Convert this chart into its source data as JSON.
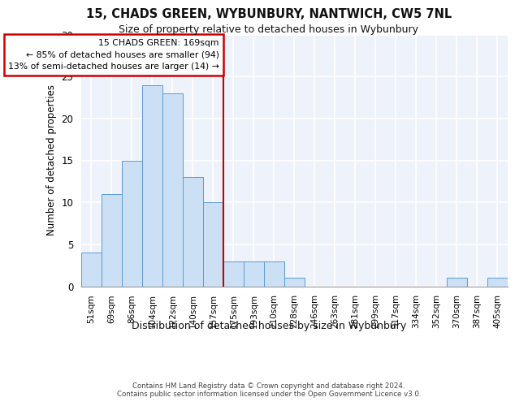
{
  "title_line1": "15, CHADS GREEN, WYBUNBURY, NANTWICH, CW5 7NL",
  "title_line2": "Size of property relative to detached houses in Wybunbury",
  "xlabel": "Distribution of detached houses by size in Wybunbury",
  "ylabel": "Number of detached properties",
  "bar_labels": [
    "51sqm",
    "69sqm",
    "86sqm",
    "104sqm",
    "122sqm",
    "140sqm",
    "157sqm",
    "175sqm",
    "193sqm",
    "210sqm",
    "228sqm",
    "246sqm",
    "263sqm",
    "281sqm",
    "299sqm",
    "317sqm",
    "334sqm",
    "352sqm",
    "370sqm",
    "387sqm",
    "405sqm"
  ],
  "bar_values": [
    4,
    11,
    15,
    24,
    23,
    13,
    10,
    3,
    3,
    3,
    1,
    0,
    0,
    0,
    0,
    0,
    0,
    0,
    1,
    0,
    1
  ],
  "bar_color": "#cce0f5",
  "bar_edge_color": "#5b9bd5",
  "vline_x_index": 6.5,
  "annotation_text": "15 CHADS GREEN: 169sqm\n← 85% of detached houses are smaller (94)\n13% of semi-detached houses are larger (14) →",
  "vline_color": "#cc0000",
  "annotation_box_color": "#ffffff",
  "annotation_box_edge": "#cc0000",
  "ylim": [
    0,
    30
  ],
  "yticks": [
    0,
    5,
    10,
    15,
    20,
    25,
    30
  ],
  "background_color": "#eef2fa",
  "grid_color": "#ffffff",
  "footer_line1": "Contains HM Land Registry data © Crown copyright and database right 2024.",
  "footer_line2": "Contains public sector information licensed under the Open Government Licence v3.0."
}
